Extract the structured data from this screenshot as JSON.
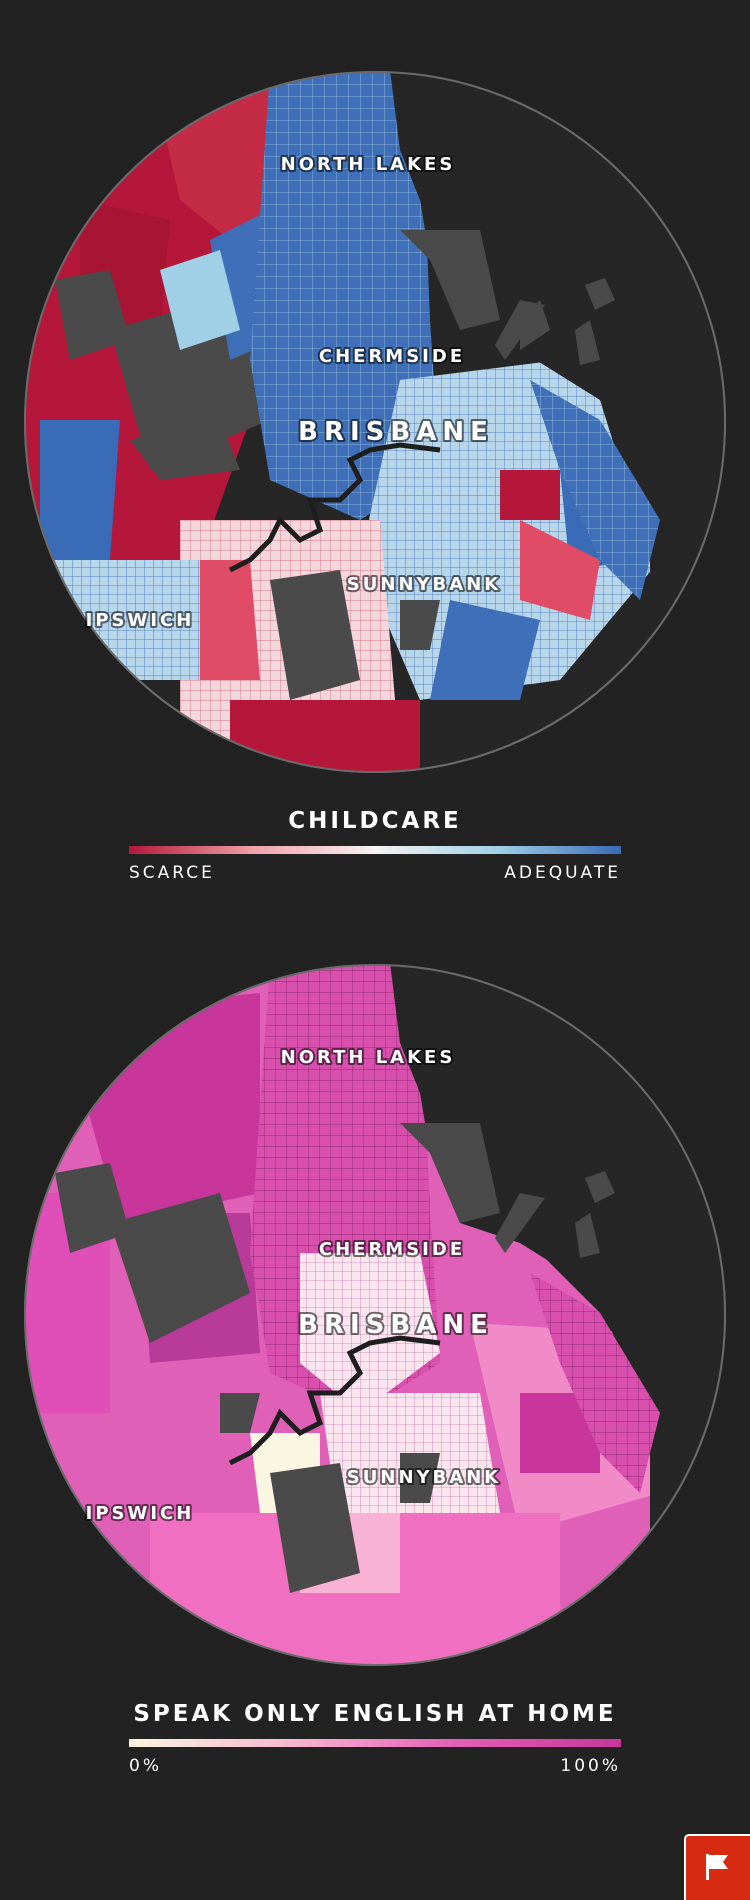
{
  "maps": [
    {
      "id": "childcare",
      "labels": {
        "north_lakes": "NORTH LAKES",
        "chermside": "CHERMSIDE",
        "brisbane": "BRISBANE",
        "sunnybank": "SUNNYBANK",
        "ipswich": "IPSWICH"
      },
      "legend": {
        "title": "CHILDCARE",
        "min_label": "SCARCE",
        "max_label": "ADEQUATE",
        "colors": [
          "#b5173a",
          "#f0a0a8",
          "#f6f3f3",
          "#9fd0e6",
          "#3a6bb6"
        ]
      }
    },
    {
      "id": "english",
      "labels": {
        "north_lakes": "NORTH LAKES",
        "chermside": "CHERMSIDE",
        "brisbane": "BRISBANE",
        "sunnybank": "SUNNYBANK",
        "ipswich": "IPSWICH"
      },
      "legend": {
        "title": "SPEAK ONLY ENGLISH AT HOME",
        "min_label": "0%",
        "max_label": "100%",
        "colors": [
          "#fbf6e2",
          "#f6b6d0",
          "#e55fb5",
          "#c8369c"
        ]
      }
    }
  ],
  "colors": {
    "background": "#222222",
    "land_gray": "#4a4a4a",
    "circle_outline": "#6a6a6a",
    "river": "#222222",
    "report_button": "#d62b12"
  },
  "icons": {
    "report_button": "flag-icon"
  }
}
